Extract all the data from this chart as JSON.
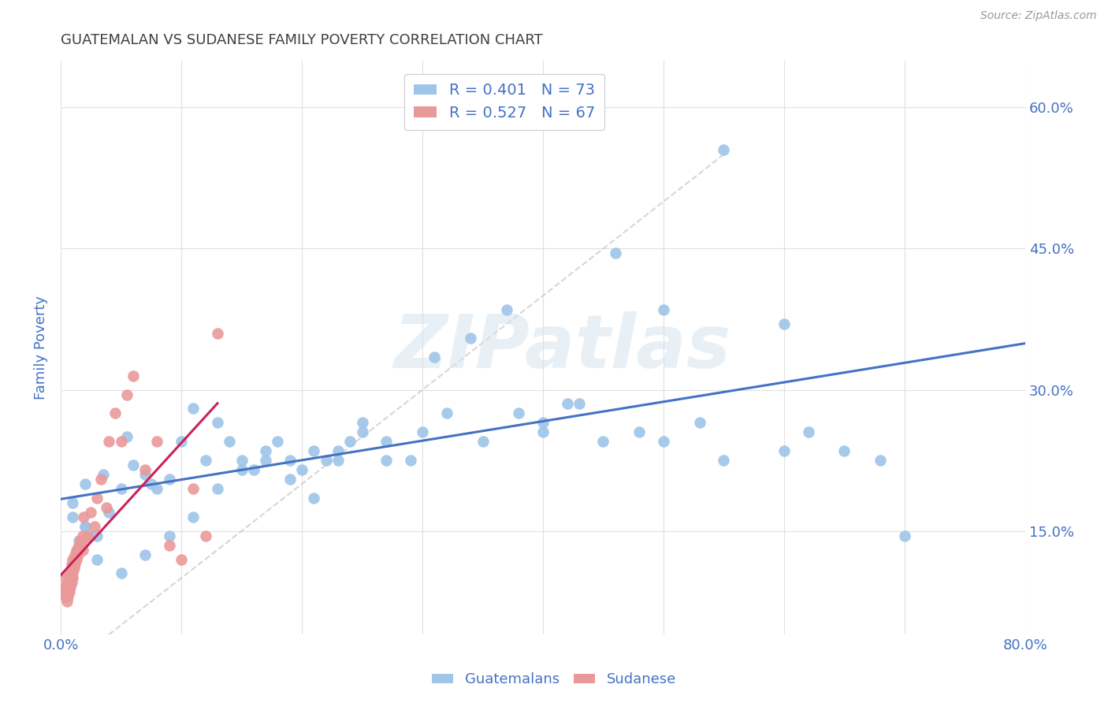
{
  "title": "GUATEMALAN VS SUDANESE FAMILY POVERTY CORRELATION CHART",
  "source": "Source: ZipAtlas.com",
  "ylabel": "Family Poverty",
  "xlim": [
    0.0,
    0.8
  ],
  "ylim": [
    0.04,
    0.65
  ],
  "x_ticks": [
    0.0,
    0.1,
    0.2,
    0.3,
    0.4,
    0.5,
    0.6,
    0.7,
    0.8
  ],
  "y_ticks": [
    0.15,
    0.3,
    0.45,
    0.6
  ],
  "blue_color": "#9fc5e8",
  "pink_color": "#ea9999",
  "blue_line_color": "#4472c4",
  "pink_line_color": "#cc2255",
  "diagonal_color": "#cccccc",
  "r_blue": 0.401,
  "n_blue": 73,
  "r_pink": 0.527,
  "n_pink": 67,
  "blue_x": [
    0.02,
    0.01,
    0.015,
    0.02,
    0.025,
    0.03,
    0.01,
    0.02,
    0.04,
    0.035,
    0.05,
    0.06,
    0.055,
    0.07,
    0.08,
    0.075,
    0.09,
    0.1,
    0.11,
    0.12,
    0.13,
    0.14,
    0.15,
    0.16,
    0.17,
    0.18,
    0.19,
    0.2,
    0.21,
    0.22,
    0.23,
    0.24,
    0.25,
    0.27,
    0.29,
    0.3,
    0.32,
    0.35,
    0.38,
    0.4,
    0.42,
    0.45,
    0.48,
    0.5,
    0.53,
    0.55,
    0.6,
    0.62,
    0.65,
    0.68,
    0.7,
    0.03,
    0.05,
    0.07,
    0.09,
    0.11,
    0.13,
    0.15,
    0.17,
    0.19,
    0.21,
    0.23,
    0.25,
    0.27,
    0.31,
    0.34,
    0.37,
    0.4,
    0.43,
    0.46,
    0.5,
    0.55,
    0.6
  ],
  "blue_y": [
    0.155,
    0.165,
    0.14,
    0.155,
    0.145,
    0.145,
    0.18,
    0.2,
    0.17,
    0.21,
    0.195,
    0.22,
    0.25,
    0.21,
    0.195,
    0.2,
    0.205,
    0.245,
    0.28,
    0.225,
    0.265,
    0.245,
    0.225,
    0.215,
    0.235,
    0.245,
    0.225,
    0.215,
    0.235,
    0.225,
    0.225,
    0.245,
    0.265,
    0.225,
    0.225,
    0.255,
    0.275,
    0.245,
    0.275,
    0.255,
    0.285,
    0.245,
    0.255,
    0.245,
    0.265,
    0.225,
    0.37,
    0.255,
    0.235,
    0.225,
    0.145,
    0.12,
    0.105,
    0.125,
    0.145,
    0.165,
    0.195,
    0.215,
    0.225,
    0.205,
    0.185,
    0.235,
    0.255,
    0.245,
    0.335,
    0.355,
    0.385,
    0.265,
    0.285,
    0.445,
    0.385,
    0.555,
    0.235
  ],
  "pink_x": [
    0.003,
    0.003,
    0.004,
    0.004,
    0.004,
    0.005,
    0.005,
    0.005,
    0.005,
    0.006,
    0.006,
    0.006,
    0.007,
    0.007,
    0.007,
    0.007,
    0.008,
    0.008,
    0.008,
    0.008,
    0.009,
    0.009,
    0.009,
    0.009,
    0.01,
    0.01,
    0.01,
    0.01,
    0.01,
    0.011,
    0.011,
    0.011,
    0.012,
    0.012,
    0.012,
    0.013,
    0.013,
    0.013,
    0.014,
    0.014,
    0.015,
    0.015,
    0.016,
    0.016,
    0.017,
    0.018,
    0.018,
    0.019,
    0.02,
    0.022,
    0.025,
    0.028,
    0.03,
    0.033,
    0.038,
    0.04,
    0.045,
    0.05,
    0.055,
    0.06,
    0.07,
    0.08,
    0.09,
    0.1,
    0.11,
    0.12,
    0.13
  ],
  "pink_y": [
    0.09,
    0.1,
    0.08,
    0.085,
    0.09,
    0.075,
    0.08,
    0.085,
    0.09,
    0.08,
    0.085,
    0.09,
    0.085,
    0.09,
    0.095,
    0.1,
    0.09,
    0.095,
    0.1,
    0.105,
    0.095,
    0.1,
    0.11,
    0.115,
    0.1,
    0.105,
    0.11,
    0.115,
    0.12,
    0.11,
    0.115,
    0.12,
    0.115,
    0.12,
    0.125,
    0.12,
    0.125,
    0.13,
    0.125,
    0.13,
    0.13,
    0.135,
    0.135,
    0.14,
    0.14,
    0.145,
    0.13,
    0.165,
    0.14,
    0.145,
    0.17,
    0.155,
    0.185,
    0.205,
    0.175,
    0.245,
    0.275,
    0.245,
    0.295,
    0.315,
    0.215,
    0.245,
    0.135,
    0.12,
    0.195,
    0.145,
    0.36
  ],
  "watermark": "ZIPatlas",
  "background_color": "#ffffff",
  "grid_color": "#e0e0e0",
  "title_color": "#404040",
  "axis_label_color": "#4472c4",
  "tick_color": "#4472c4"
}
